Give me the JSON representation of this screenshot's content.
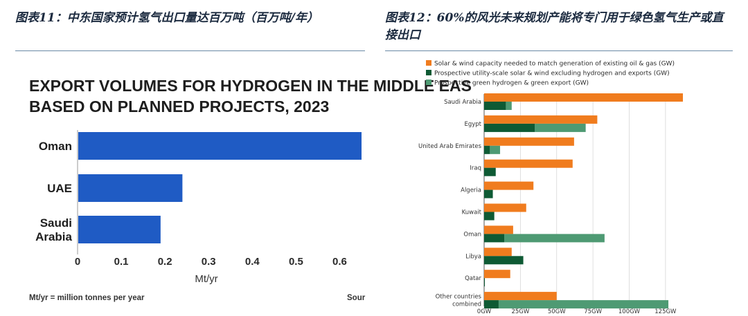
{
  "figures": {
    "left_caption": "图表11：中东国家预计氢气出口量达百万吨（百万吨/年）",
    "right_caption": "图表12：60%的风光未来规划产能将专门用于绿色氢气生产或直接出口"
  },
  "chart_data": [
    {
      "type": "bar",
      "orientation": "horizontal",
      "title_lines": [
        "EXPORT VOLUMES FOR HYDROGEN IN THE MIDDLE EAS",
        "BASED ON PLANNED PROJECTS, 2023"
      ],
      "categories": [
        [
          "Oman"
        ],
        [
          "UAE"
        ],
        [
          "Saudi",
          "Arabia"
        ]
      ],
      "values": [
        0.65,
        0.24,
        0.19
      ],
      "xlabel": "Mt/yr",
      "xlim": [
        0,
        0.65
      ],
      "xticks": [
        0,
        0.1,
        0.2,
        0.3,
        0.4,
        0.5,
        0.6
      ],
      "xtick_labels": [
        "0",
        "0.1",
        "0.2",
        "0.3",
        "0.4",
        "0.5",
        "0.6"
      ],
      "footnote": "Mt/yr = million tonnes per year",
      "source_text": "Sour",
      "grid": false,
      "color": "#1f5bc4"
    },
    {
      "type": "bar",
      "orientation": "horizontal",
      "legend_position": "top-left",
      "categories": [
        [
          "Saudi Arabia"
        ],
        [
          "Egypt"
        ],
        [
          "United Arab Emirates"
        ],
        [
          "Iraq"
        ],
        [
          "Algeria"
        ],
        [
          "Kuwait"
        ],
        [
          "Oman"
        ],
        [
          "Libya"
        ],
        [
          "Qatar"
        ],
        [
          "Other countries",
          "combined"
        ]
      ],
      "series": [
        {
          "name": "Solar & wind capacity needed to match generation of existing oil & gas (GW)",
          "color": "#f07c1e",
          "values": [
            137,
            78,
            62,
            61,
            34,
            29,
            20,
            19,
            18,
            50
          ]
        },
        {
          "name": "Prospective utility-scale solar & wind excluding hydrogen and exports (GW)",
          "color": "#0e5a34",
          "values": [
            15,
            35,
            4,
            8,
            6,
            7,
            14,
            27,
            0.5,
            10
          ]
        },
        {
          "name": "Prospective green hydrogen & green export (GW)",
          "color": "#4e9a73",
          "values": [
            4,
            35,
            7,
            0,
            0,
            0,
            69,
            0,
            0,
            117
          ]
        }
      ],
      "stack_series": [
        1,
        2
      ],
      "xlim": [
        0,
        137
      ],
      "xticks": [
        0,
        25,
        50,
        75,
        100,
        125
      ],
      "xtick_labels": [
        "0GW",
        "25GW",
        "50GW",
        "75GW",
        "100GW",
        "125GW"
      ],
      "grid": true
    }
  ]
}
